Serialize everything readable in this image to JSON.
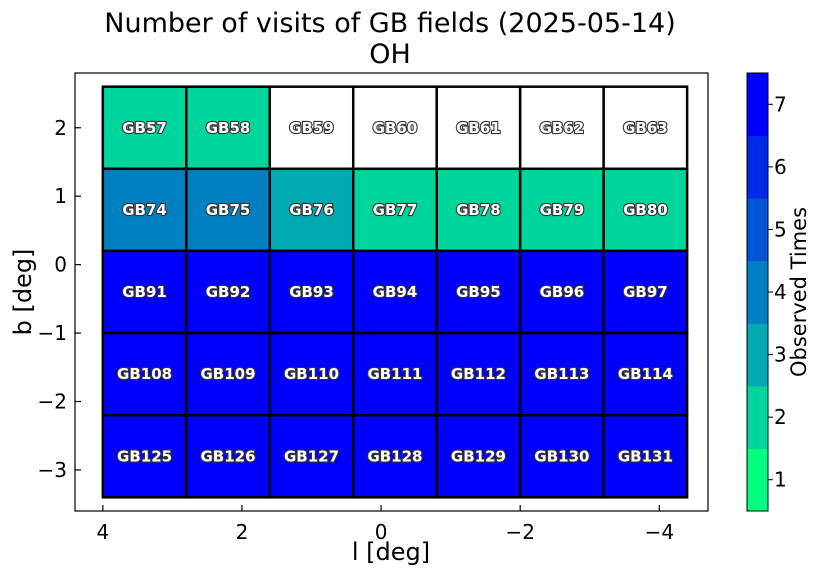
{
  "chart_data": {
    "type": "heatmap",
    "title": "Number of visits of GB fields (2025-05-14)",
    "subtitle": "OH",
    "xlabel": "l [deg]",
    "ylabel": "b [deg]",
    "xlim": [
      4.4,
      -4.7
    ],
    "ylim": [
      -3.6,
      2.8
    ],
    "x_ticks": [
      4,
      2,
      0,
      -2,
      -4
    ],
    "x_tick_labels": [
      "4",
      "2",
      "0",
      "−2",
      "−4"
    ],
    "y_ticks": [
      2,
      1,
      0,
      -1,
      -2,
      -3
    ],
    "y_tick_labels": [
      "2",
      "1",
      "0",
      "−1",
      "−2",
      "−3"
    ],
    "col_centers_l": [
      3.4,
      2.2,
      1.0,
      -0.2,
      -1.4,
      -2.6,
      -3.8
    ],
    "row_centers_b": [
      2.0,
      0.8,
      -0.4,
      -1.6,
      -2.8
    ],
    "cell_width_deg": 1.2,
    "cell_height_deg": 1.2,
    "fields": [
      [
        "GB57",
        "GB58",
        "GB59",
        "GB60",
        "GB61",
        "GB62",
        "GB63"
      ],
      [
        "GB74",
        "GB75",
        "GB76",
        "GB77",
        "GB78",
        "GB79",
        "GB80"
      ],
      [
        "GB91",
        "GB92",
        "GB93",
        "GB94",
        "GB95",
        "GB96",
        "GB97"
      ],
      [
        "GB108",
        "GB109",
        "GB110",
        "GB111",
        "GB112",
        "GB113",
        "GB114"
      ],
      [
        "GB125",
        "GB126",
        "GB127",
        "GB128",
        "GB129",
        "GB130",
        "GB131"
      ]
    ],
    "visits": [
      [
        2,
        2,
        0,
        0,
        0,
        0,
        0
      ],
      [
        4,
        4,
        3,
        2,
        2,
        2,
        2
      ],
      [
        7,
        7,
        7,
        7,
        7,
        7,
        7
      ],
      [
        7,
        7,
        7,
        7,
        7,
        7,
        7
      ],
      [
        7,
        7,
        7,
        7,
        7,
        7,
        7
      ]
    ],
    "colorbar": {
      "label": "Observed Times",
      "range": [
        0.5,
        7.5
      ],
      "ticks": [
        1,
        2,
        3,
        4,
        5,
        6,
        7
      ],
      "tick_labels": [
        "1",
        "2",
        "3",
        "4",
        "5",
        "6",
        "7"
      ],
      "colors": [
        "#00ff80",
        "#00d69b",
        "#00aab0",
        "#0080c0",
        "#0055d5",
        "#002aea",
        "#0000ff"
      ],
      "zero_color": "#ffffff"
    },
    "grid": false
  }
}
